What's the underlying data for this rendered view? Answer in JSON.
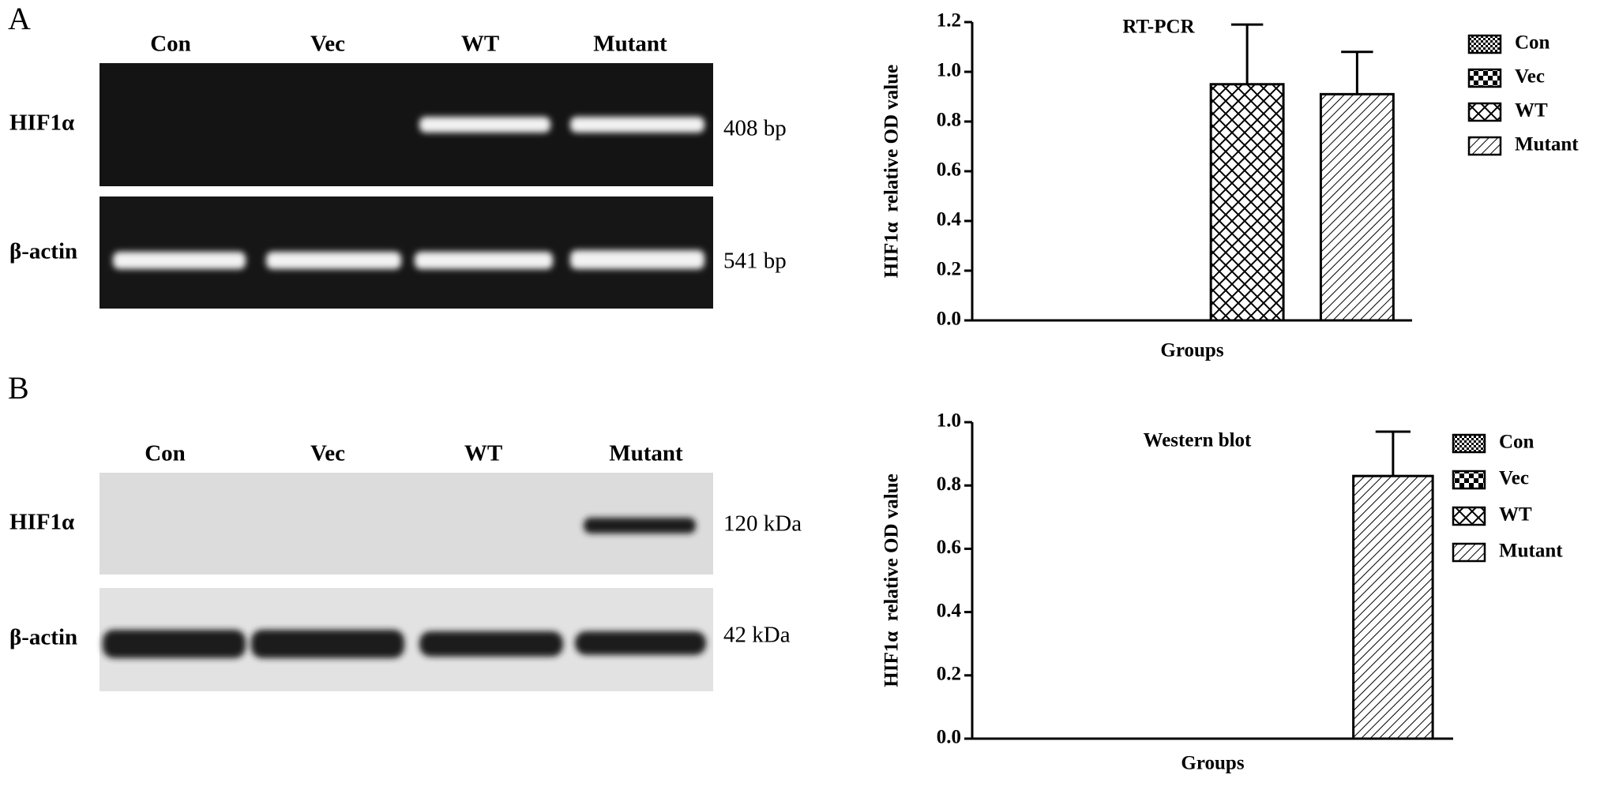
{
  "panels": [
    {
      "letter": "A",
      "lanes": [
        "Con",
        "Vec",
        "WT",
        "Mutant"
      ],
      "rows": [
        {
          "label": "HIF1α",
          "size": "408 bp"
        },
        {
          "label": "β-actin",
          "size": "541 bp"
        }
      ]
    },
    {
      "letter": "B",
      "lanes": [
        "Con",
        "Vec",
        "WT",
        "Mutant"
      ],
      "rows": [
        {
          "label": "HIF1α",
          "size": "120 kDa"
        },
        {
          "label": "β-actin",
          "size": "42 kDa"
        }
      ]
    }
  ],
  "chart_data": [
    {
      "type": "bar",
      "title": "RT-PCR",
      "xlabel": "Groups",
      "ylabel": "HIF1α  relative OD value",
      "categories": [
        "Con",
        "Vec",
        "WT",
        "Mutant"
      ],
      "values": [
        0,
        0,
        0.95,
        0.91
      ],
      "errors": [
        0,
        0,
        0.24,
        0.17
      ],
      "ylim": [
        0,
        1.2
      ],
      "yticks": [
        {
          "value": 0,
          "label": "0.0"
        },
        {
          "value": 0.2,
          "label": "0.2"
        },
        {
          "value": 0.4,
          "label": "0.4"
        },
        {
          "value": 0.6,
          "label": "0.6"
        },
        {
          "value": 0.8,
          "label": "0.8"
        },
        {
          "value": 1.0,
          "label": "1.0"
        },
        {
          "value": 1.2,
          "label": "1.2"
        }
      ],
      "legend": "upper right"
    },
    {
      "type": "bar",
      "title": "Western blot",
      "xlabel": "Groups",
      "ylabel": "HIF1α  relative OD value",
      "categories": [
        "Con",
        "Vec",
        "WT",
        "Mutant"
      ],
      "values": [
        0,
        0,
        0,
        0.83
      ],
      "errors": [
        0,
        0,
        0,
        0.14
      ],
      "ylim": [
        0,
        1.0
      ],
      "yticks": [
        {
          "value": 0,
          "label": "0.0"
        },
        {
          "value": 0.2,
          "label": "0.2"
        },
        {
          "value": 0.4,
          "label": "0.4"
        },
        {
          "value": 0.6,
          "label": "0.6"
        },
        {
          "value": 0.8,
          "label": "0.8"
        },
        {
          "value": 1.0,
          "label": "1.0"
        }
      ],
      "legend": "upper right"
    }
  ]
}
